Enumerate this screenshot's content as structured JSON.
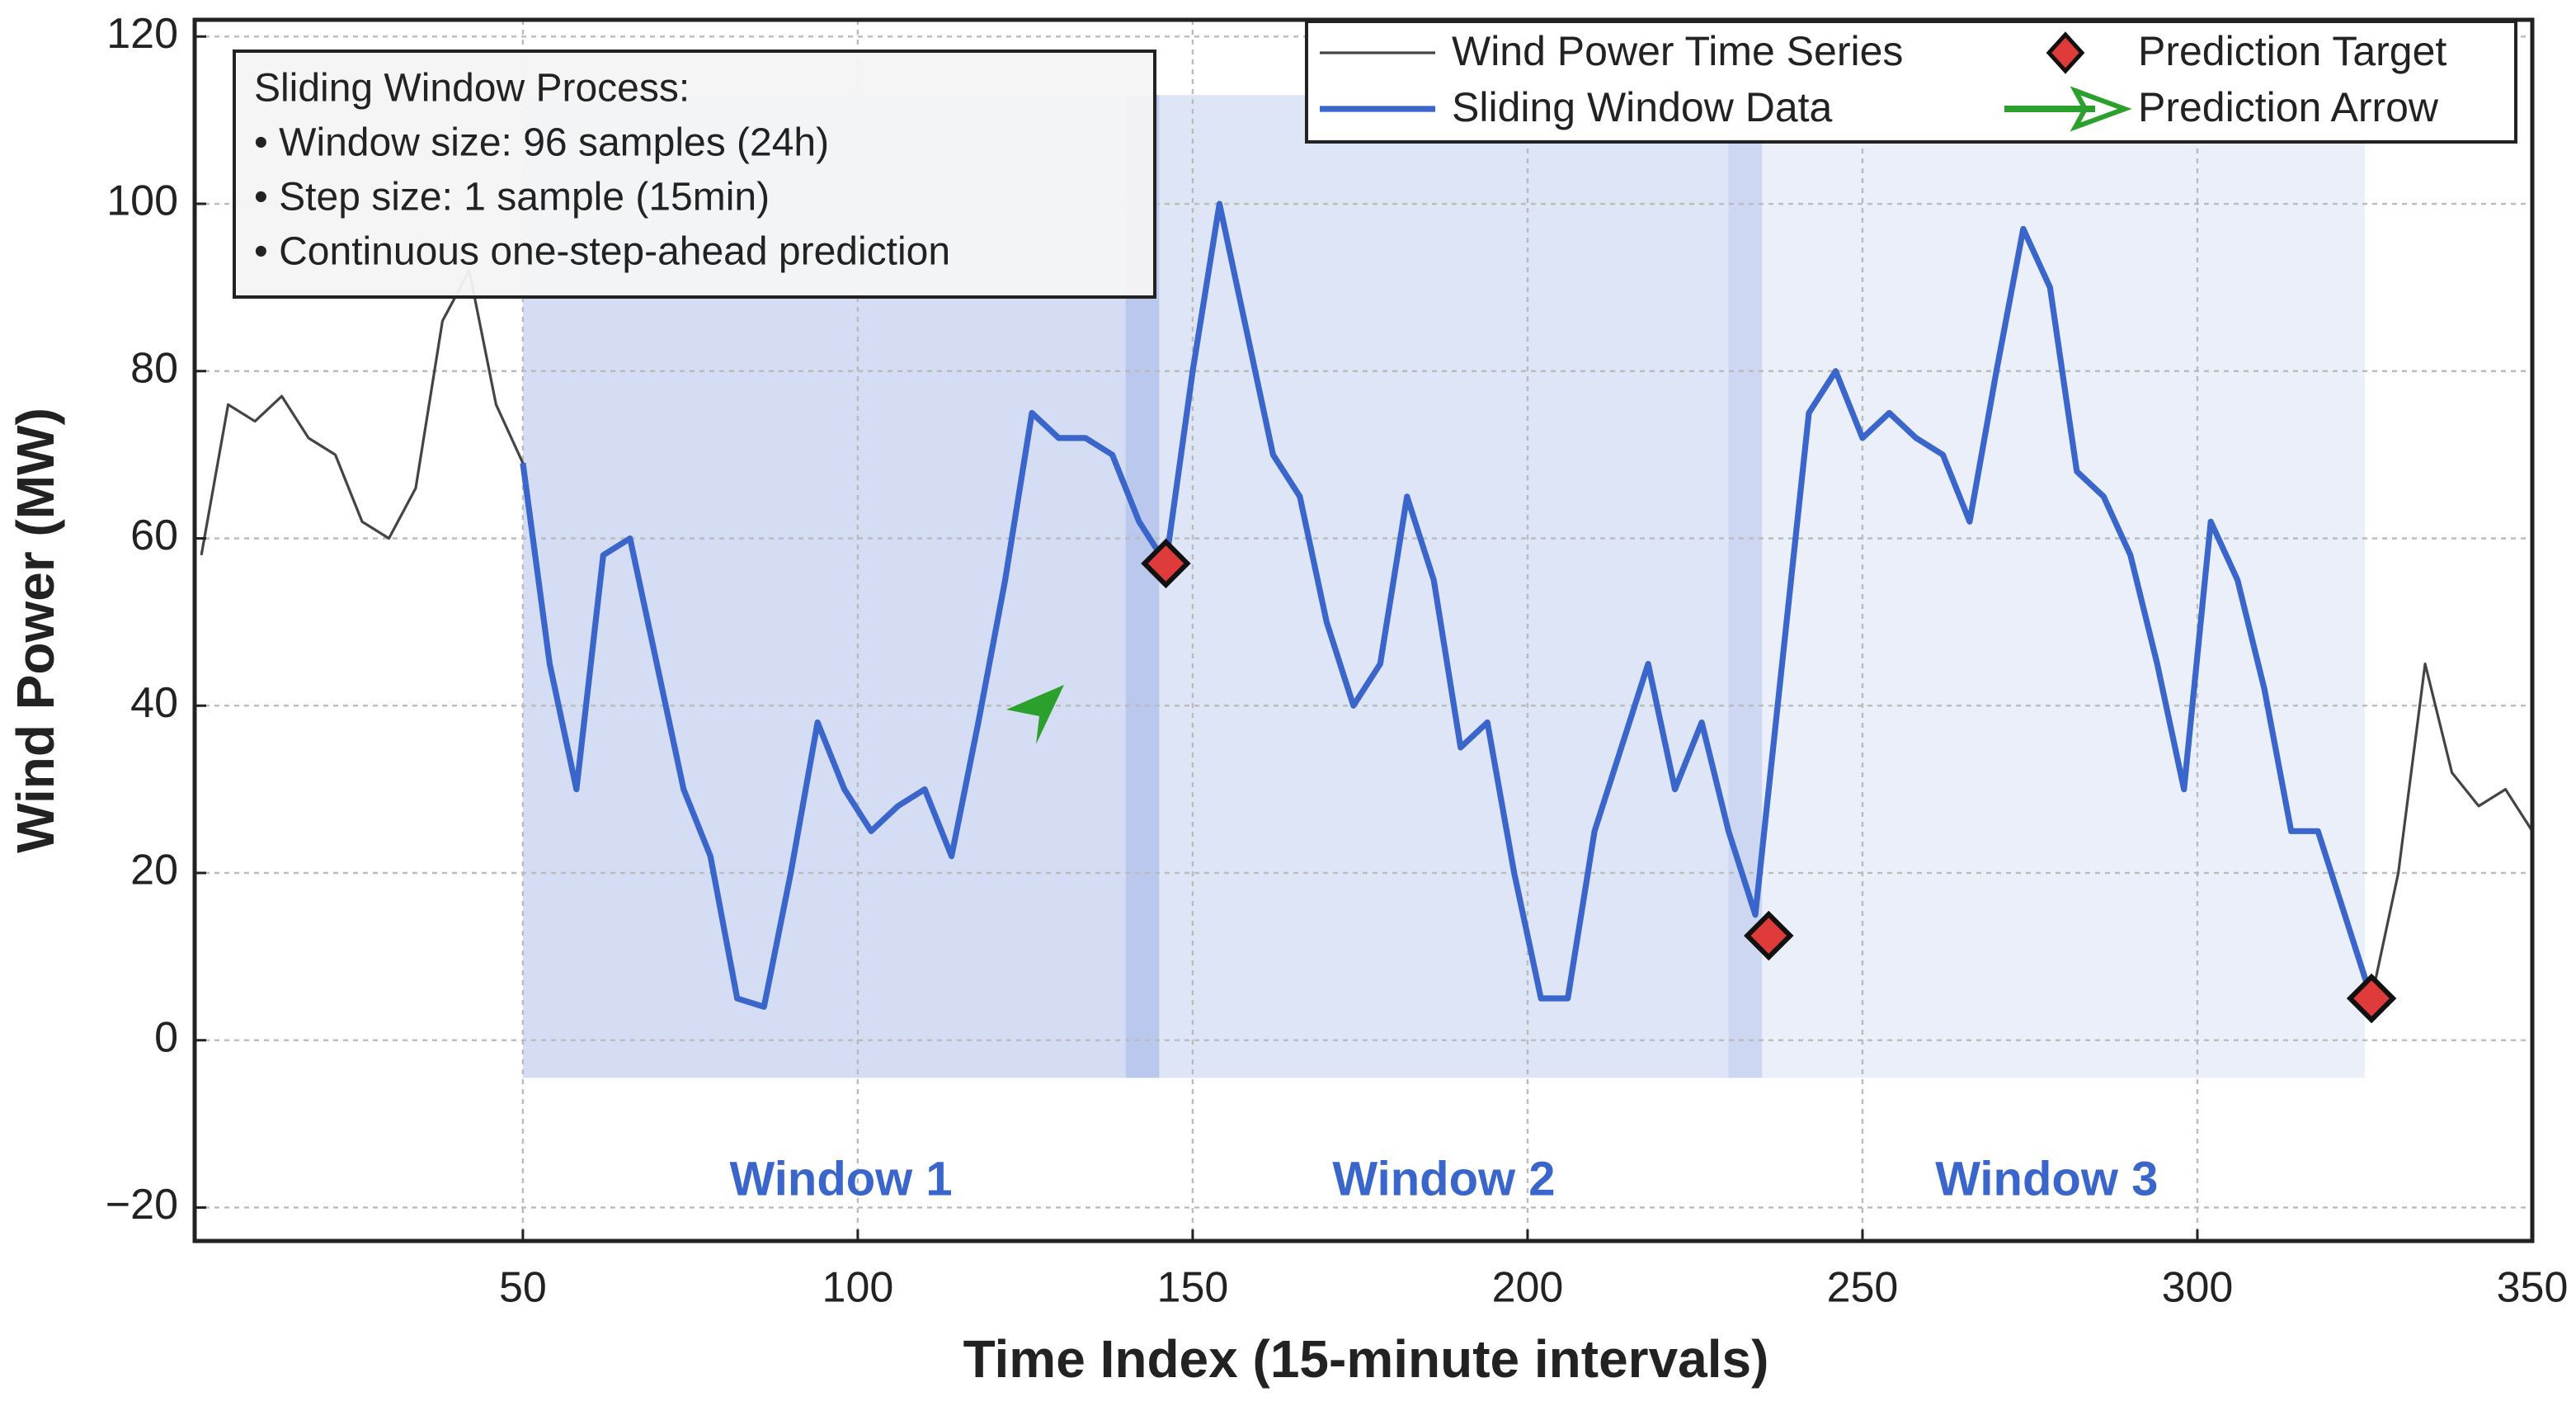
{
  "chart_data": {
    "type": "line",
    "xlabel": "Time Index (15-minute intervals)",
    "ylabel": "Wind Power (MW)",
    "xlim": [
      1,
      350
    ],
    "ylim": [
      -24,
      122
    ],
    "xticks": [
      50,
      100,
      150,
      200,
      250,
      300,
      350
    ],
    "yticks": [
      {
        "value": -20,
        "label": "−20"
      },
      0,
      20,
      40,
      60,
      80,
      100,
      120
    ],
    "grid": true,
    "legend": "upper right",
    "x": [
      2,
      6,
      10,
      14,
      18,
      22,
      26,
      30,
      34,
      38,
      42,
      46,
      50,
      54,
      58,
      62,
      66,
      70,
      74,
      78,
      82,
      86,
      90,
      94,
      98,
      102,
      106,
      110,
      114,
      118,
      122,
      126,
      130,
      134,
      138,
      142,
      146,
      150,
      154,
      158,
      162,
      166,
      170,
      174,
      178,
      182,
      186,
      190,
      194,
      198,
      202,
      206,
      210,
      214,
      218,
      222,
      226,
      230,
      234,
      238,
      242,
      246,
      250,
      254,
      258,
      262,
      266,
      270,
      274,
      278,
      282,
      286,
      290,
      294,
      298,
      302,
      306,
      310,
      314,
      318,
      322,
      326,
      330,
      334,
      338,
      342,
      346,
      350
    ],
    "series": [
      {
        "name": "Wind Power Time Series",
        "color": "#444444",
        "values": [
          58,
          76,
          74,
          77,
          72,
          70,
          62,
          60,
          66,
          86,
          92,
          76,
          69,
          45,
          30,
          58,
          60,
          45,
          30,
          22,
          5,
          4,
          20,
          38,
          30,
          25,
          28,
          30,
          22,
          38,
          55,
          75,
          72,
          72,
          70,
          62,
          57,
          80,
          100,
          85,
          70,
          65,
          50,
          40,
          45,
          65,
          55,
          35,
          38,
          20,
          5,
          5,
          25,
          35,
          45,
          30,
          38,
          25,
          15,
          45,
          75,
          80,
          72,
          75,
          72,
          70,
          62,
          80,
          97,
          90,
          68,
          65,
          58,
          45,
          30,
          62,
          55,
          42,
          25,
          25,
          15,
          5,
          20,
          45,
          32,
          28,
          30,
          25
        ]
      },
      {
        "name": "Sliding Window Data",
        "color": "#3a66cc",
        "values": [
          null,
          null,
          null,
          null,
          null,
          null,
          null,
          null,
          null,
          null,
          null,
          null,
          69,
          45,
          30,
          58,
          60,
          45,
          30,
          22,
          5,
          4,
          20,
          38,
          30,
          25,
          28,
          30,
          22,
          38,
          55,
          75,
          72,
          72,
          70,
          62,
          57,
          80,
          100,
          85,
          70,
          65,
          50,
          40,
          45,
          65,
          55,
          35,
          38,
          20,
          5,
          5,
          25,
          35,
          45,
          30,
          38,
          25,
          15,
          45,
          75,
          80,
          72,
          75,
          72,
          70,
          62,
          80,
          97,
          90,
          68,
          65,
          58,
          45,
          30,
          62,
          55,
          42,
          25,
          25,
          15,
          5,
          null,
          null,
          null,
          null,
          null,
          null
        ]
      }
    ],
    "targets": {
      "name": "Prediction Target",
      "color": "#e03b3b",
      "x": [
        146,
        236,
        326
      ],
      "values": [
        57,
        12.5,
        5
      ]
    },
    "arrow": {
      "name": "Prediction Arrow",
      "color": "#2ca02c"
    },
    "window_band": [
      -4.5,
      113
    ],
    "windows": [
      {
        "label": "Window 1",
        "start": 50,
        "end": 145
      },
      {
        "label": "Window 2",
        "start": 140,
        "end": 235
      },
      {
        "label": "Window 3",
        "start": 230,
        "end": 325
      }
    ],
    "textbox": {
      "title": "Sliding Window Process:",
      "lines": [
        "• Window size: 96 samples (24h)",
        "• Step size: 1 sample (15min)",
        "• Continuous one-step-ahead prediction"
      ]
    }
  }
}
